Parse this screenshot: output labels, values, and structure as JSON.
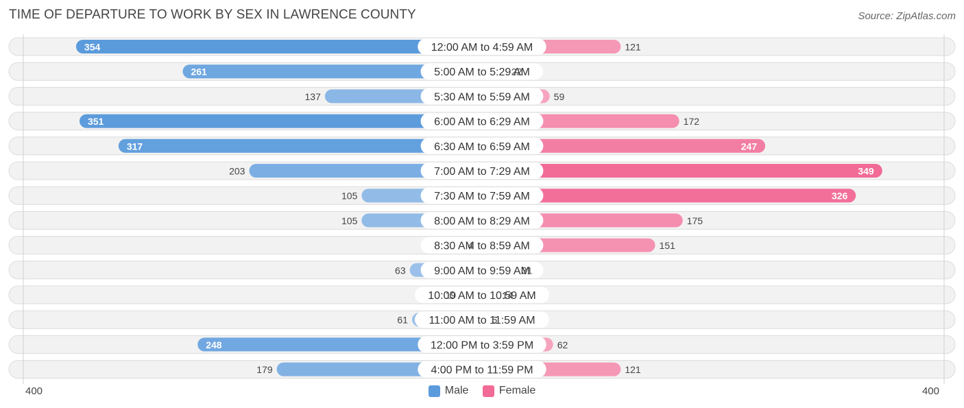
{
  "header": {
    "title": "TIME OF DEPARTURE TO WORK BY SEX IN LAWRENCE COUNTY",
    "source": "Source: ZipAtlas.com"
  },
  "colors": {
    "male_strong": "#5b9bdc",
    "male_light": "#a9c8ec",
    "female_strong": "#f26a96",
    "female_light": "#f7b0c7",
    "row_bg": "#f2f2f2",
    "row_border": "#dcdcdc"
  },
  "chart_data": {
    "type": "bar",
    "orientation": "horizontal-diverging",
    "categories": [
      "12:00 AM to 4:59 AM",
      "5:00 AM to 5:29 AM",
      "5:30 AM to 5:59 AM",
      "6:00 AM to 6:29 AM",
      "6:30 AM to 6:59 AM",
      "7:00 AM to 7:29 AM",
      "7:30 AM to 7:59 AM",
      "8:00 AM to 8:29 AM",
      "8:30 AM to 8:59 AM",
      "9:00 AM to 9:59 AM",
      "10:00 AM to 10:59 AM",
      "11:00 AM to 11:59 AM",
      "12:00 PM to 3:59 PM",
      "4:00 PM to 11:59 PM"
    ],
    "series": [
      {
        "name": "Male",
        "values": [
          354,
          261,
          137,
          351,
          317,
          203,
          105,
          105,
          4,
          63,
          19,
          61,
          248,
          179
        ]
      },
      {
        "name": "Female",
        "values": [
          121,
          22,
          59,
          172,
          247,
          349,
          326,
          175,
          151,
          31,
          14,
          5,
          62,
          121
        ]
      }
    ],
    "axis": {
      "left_label": "400",
      "right_label": "400",
      "max": 400
    },
    "legend": {
      "position": "bottom-center",
      "items": [
        "Male",
        "Female"
      ]
    }
  }
}
